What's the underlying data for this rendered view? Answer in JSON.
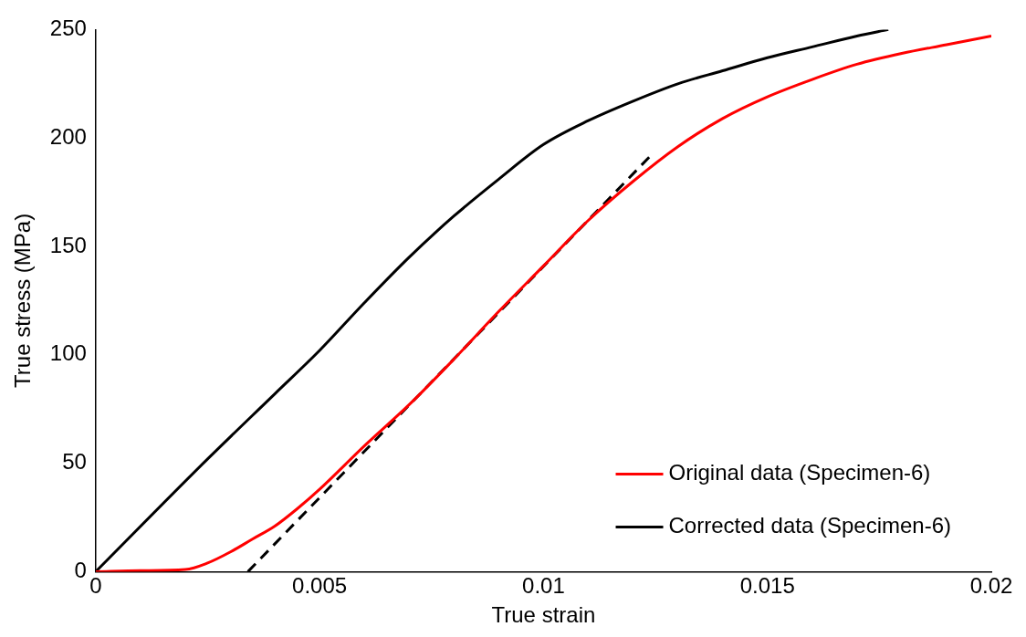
{
  "chart_data": {
    "type": "line",
    "xlabel": "True strain",
    "ylabel": "True stress (MPa)",
    "xlim": [
      0,
      0.02
    ],
    "xticks": [
      0,
      0.005,
      0.01,
      0.015,
      0.02
    ],
    "ylim": [
      0,
      250
    ],
    "yticks": [
      0,
      50,
      100,
      150,
      200,
      250
    ],
    "grid": false,
    "legend": "bottom right",
    "marker": "none",
    "series": [
      {
        "name": "Original data (Specimen-6)",
        "color": "#ff0000",
        "line_style": "solid",
        "x": [
          0,
          0.001,
          0.002,
          0.0025,
          0.003,
          0.0035,
          0.004,
          0.0045,
          0.005,
          0.006,
          0.007,
          0.008,
          0.009,
          0.01,
          0.011,
          0.012,
          0.013,
          0.014,
          0.015,
          0.016,
          0.017,
          0.018,
          0.019,
          0.02
        ],
        "values": [
          0,
          0.5,
          1,
          4,
          9,
          15,
          21,
          29,
          38,
          58,
          77,
          98,
          120,
          141,
          162,
          180,
          196,
          209,
          219,
          227,
          234,
          239,
          243,
          247
        ]
      },
      {
        "name": "Corrected data (Specimen-6)",
        "color": "#000000",
        "line_style": "solid",
        "x": [
          0,
          0.0025,
          0.004,
          0.005,
          0.006,
          0.007,
          0.008,
          0.009,
          0.01,
          0.011,
          0.012,
          0.013,
          0.014,
          0.015,
          0.016,
          0.017,
          0.0177
        ],
        "values": [
          0,
          52,
          82,
          102,
          124,
          145,
          164,
          181,
          197,
          208,
          217,
          225,
          231,
          237,
          242,
          247,
          250
        ]
      },
      {
        "type": "line",
        "color": "#000000",
        "line_style": "dashed",
        "x": [
          0.0034,
          0.0124
        ],
        "values": [
          0,
          192
        ]
      }
    ]
  }
}
